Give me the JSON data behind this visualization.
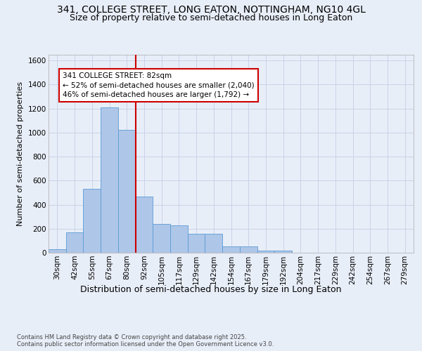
{
  "title_line1": "341, COLLEGE STREET, LONG EATON, NOTTINGHAM, NG10 4GL",
  "title_line2": "Size of property relative to semi-detached houses in Long Eaton",
  "xlabel": "Distribution of semi-detached houses by size in Long Eaton",
  "ylabel": "Number of semi-detached properties",
  "footer": "Contains HM Land Registry data © Crown copyright and database right 2025.\nContains public sector information licensed under the Open Government Licence v3.0.",
  "categories": [
    "30sqm",
    "42sqm",
    "55sqm",
    "67sqm",
    "80sqm",
    "92sqm",
    "105sqm",
    "117sqm",
    "129sqm",
    "142sqm",
    "154sqm",
    "167sqm",
    "179sqm",
    "192sqm",
    "204sqm",
    "217sqm",
    "229sqm",
    "242sqm",
    "254sqm",
    "267sqm",
    "279sqm"
  ],
  "values": [
    30,
    170,
    530,
    1210,
    1020,
    470,
    240,
    230,
    160,
    160,
    50,
    50,
    20,
    20,
    0,
    0,
    0,
    0,
    0,
    0,
    0
  ],
  "bar_color": "#aec6e8",
  "bar_edge_color": "#5b9bd5",
  "annotation_text_line1": "341 COLLEGE STREET: 82sqm",
  "annotation_text_line2": "← 52% of semi-detached houses are smaller (2,040)",
  "annotation_text_line3": "46% of semi-detached houses are larger (1,792) →",
  "annotation_box_color": "#ffffff",
  "annotation_box_edge_color": "#cc0000",
  "vline_x": 4.5,
  "vline_color": "#cc0000",
  "ylim": [
    0,
    1650
  ],
  "yticks": [
    0,
    200,
    400,
    600,
    800,
    1000,
    1200,
    1400,
    1600
  ],
  "grid_color": "#c8d4e8",
  "background_color": "#e8eef8",
  "plot_bg_color": "#e8eef8",
  "title_fontsize": 10,
  "subtitle_fontsize": 9,
  "tick_fontsize": 7.5,
  "xlabel_fontsize": 9,
  "ylabel_fontsize": 8,
  "annotation_fontsize": 7.5
}
